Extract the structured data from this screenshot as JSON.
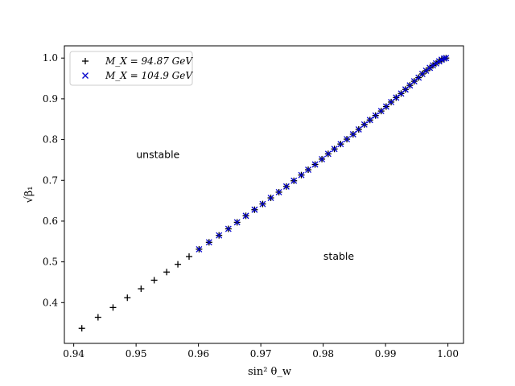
{
  "chart_data": {
    "type": "scatter",
    "title": "",
    "xlabel": "sin² θ_w",
    "ylabel": "√β₁",
    "xlim": [
      0.9385,
      1.0025
    ],
    "ylim": [
      0.3,
      1.03
    ],
    "xticks": [
      0.94,
      0.95,
      0.96,
      0.97,
      0.98,
      0.99,
      1.0
    ],
    "xtick_labels": [
      "0.94",
      "0.95",
      "0.96",
      "0.97",
      "0.98",
      "0.99",
      "1.00"
    ],
    "yticks": [
      0.4,
      0.5,
      0.6,
      0.7,
      0.8,
      0.9,
      1.0
    ],
    "ytick_labels": [
      "0.4",
      "0.5",
      "0.6",
      "0.7",
      "0.8",
      "0.9",
      "1.0"
    ],
    "grid": false,
    "legend_position": "top-left",
    "annotations": [
      {
        "text": "unstable",
        "x": 0.9535,
        "y": 0.755
      },
      {
        "text": "stable",
        "x": 0.9825,
        "y": 0.505
      }
    ],
    "series": [
      {
        "name": "M_X = 94.87 GeV",
        "marker": "plus",
        "color": "#000000",
        "x": [
          0.9413,
          0.9439,
          0.9463,
          0.9486,
          0.9508,
          0.9529,
          0.9549,
          0.9567,
          0.9585,
          0.9601,
          0.9617,
          0.9633,
          0.9648,
          0.9662,
          0.9676,
          0.969,
          0.9703,
          0.9716,
          0.9729,
          0.9741,
          0.9753,
          0.9765,
          0.9776,
          0.9787,
          0.9798,
          0.9808,
          0.9818,
          0.9828,
          0.9838,
          0.9848,
          0.9857,
          0.9866,
          0.9875,
          0.9884,
          0.9893,
          0.9901,
          0.9909,
          0.9917,
          0.9925,
          0.9932,
          0.9939,
          0.9946,
          0.9953,
          0.9959,
          0.9965,
          0.9971,
          0.9976,
          0.9981,
          0.9986,
          0.999,
          0.9994,
          0.9997
        ],
        "y": [
          0.337,
          0.364,
          0.388,
          0.412,
          0.434,
          0.455,
          0.475,
          0.494,
          0.513,
          0.531,
          0.548,
          0.565,
          0.581,
          0.597,
          0.613,
          0.628,
          0.642,
          0.657,
          0.671,
          0.685,
          0.699,
          0.713,
          0.726,
          0.739,
          0.752,
          0.765,
          0.777,
          0.789,
          0.801,
          0.813,
          0.825,
          0.837,
          0.848,
          0.859,
          0.87,
          0.881,
          0.892,
          0.903,
          0.913,
          0.923,
          0.933,
          0.943,
          0.952,
          0.961,
          0.969,
          0.976,
          0.982,
          0.987,
          0.992,
          0.996,
          0.999,
          1.0
        ]
      },
      {
        "name": "M_X = 104.9 GeV",
        "marker": "x",
        "color": "#0000cc",
        "x": [
          0.9601,
          0.9617,
          0.9633,
          0.9648,
          0.9662,
          0.9676,
          0.969,
          0.9703,
          0.9716,
          0.9729,
          0.9741,
          0.9753,
          0.9765,
          0.9776,
          0.9787,
          0.9798,
          0.9808,
          0.9818,
          0.9828,
          0.9838,
          0.9848,
          0.9857,
          0.9866,
          0.9875,
          0.9884,
          0.9893,
          0.9901,
          0.9909,
          0.9917,
          0.9925,
          0.9932,
          0.9939,
          0.9946,
          0.9953,
          0.9959,
          0.9965,
          0.9971,
          0.9976,
          0.9981,
          0.9986,
          0.999,
          0.9994,
          0.9997
        ],
        "y": [
          0.531,
          0.548,
          0.565,
          0.581,
          0.597,
          0.613,
          0.628,
          0.642,
          0.657,
          0.671,
          0.685,
          0.699,
          0.713,
          0.726,
          0.739,
          0.752,
          0.765,
          0.777,
          0.789,
          0.801,
          0.813,
          0.825,
          0.837,
          0.848,
          0.859,
          0.87,
          0.881,
          0.892,
          0.903,
          0.913,
          0.923,
          0.933,
          0.943,
          0.952,
          0.961,
          0.969,
          0.976,
          0.982,
          0.987,
          0.992,
          0.996,
          0.999,
          1.0
        ]
      }
    ]
  }
}
